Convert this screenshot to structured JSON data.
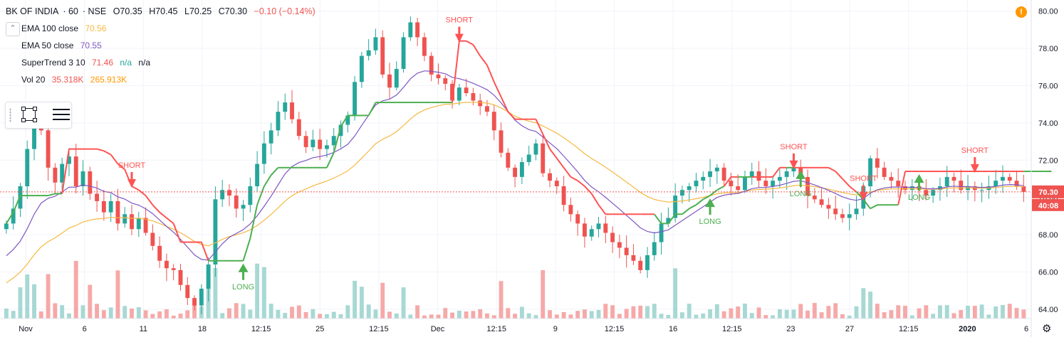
{
  "header": {
    "symbol": "BK OF INDIA",
    "interval": "60",
    "exchange": "NSE",
    "open": "O70.35",
    "high": "H70.45",
    "low": "L70.25",
    "close": "C70.30",
    "change": "−0.10 (−0.14%)"
  },
  "indicators": [
    {
      "label": "EMA 100 close",
      "value": "70.56",
      "color": "#f5b942"
    },
    {
      "label": "EMA 50 close",
      "value": "70.55",
      "color": "#7e57c2"
    },
    {
      "label": "SuperTrend 3 10",
      "value": "71.46",
      "extra1": "n/a",
      "extra2": "n/a",
      "color": "#ef5350",
      "extra_color": "#26a69a"
    },
    {
      "label": "Vol 20",
      "value": "35.318K",
      "extra1": "265.913K",
      "color": "#ef5350",
      "extra_color": "#ff9800"
    }
  ],
  "toolbox": {
    "icons": [
      "drag-handle-icon",
      "rectangle-tool-icon",
      "list-icon"
    ]
  },
  "alert_icon": "!",
  "price_label": "70.30",
  "countdown_label": "40:08",
  "colors": {
    "up": "#26a69a",
    "down": "#ef5350",
    "supertrend_up": "#4caf50",
    "supertrend_down": "#ff5252",
    "ema100": "#f5b942",
    "ema50": "#7e57c2",
    "vol_up": "#a7d8d4",
    "vol_down": "#f5a9a8",
    "price_line": "#ef5350"
  },
  "chart_data": {
    "type": "candlestick",
    "price_axis": {
      "min": 63.5,
      "max": 80.6,
      "ticks": [
        "80.00",
        "78.00",
        "76.00",
        "74.00",
        "72.00",
        "70.00",
        "68.00",
        "66.00",
        "64.00"
      ]
    },
    "x_ticks": [
      "Nov",
      "6",
      "11",
      "18",
      "12:15",
      "25",
      "12:15",
      "Dec",
      "12:15",
      "9",
      "12:15",
      "16",
      "12:15",
      "23",
      "27",
      "12:15",
      "2020",
      "6"
    ],
    "close": [
      68.6,
      69.4,
      70.6,
      72.6,
      74.2,
      73.6,
      71.6,
      70.8,
      71.8,
      72.2,
      70.6,
      71.4,
      70.2,
      69.8,
      69.2,
      69.8,
      68.6,
      69.1,
      68.3,
      68.9,
      68.1,
      67.4,
      66.6,
      66.2,
      66.1,
      65.3,
      64.6,
      64.2,
      65.1,
      66.4,
      69.9,
      70.4,
      70.1,
      69.4,
      69.6,
      70.6,
      71.8,
      72.9,
      73.6,
      74.6,
      75.1,
      74.2,
      73.3,
      72.7,
      73.1,
      72.6,
      72.8,
      73.3,
      73.9,
      74.4,
      76.2,
      77.6,
      77.9,
      78.6,
      76.6,
      75.9,
      76.9,
      78.6,
      79.4,
      78.6,
      77.6,
      76.6,
      76.4,
      76.1,
      75.2,
      75.9,
      75.6,
      75.2,
      74.9,
      74.6,
      73.6,
      72.4,
      71.6,
      71.1,
      71.9,
      72.3,
      72.9,
      71.3,
      70.9,
      70.6,
      69.6,
      69.1,
      68.6,
      67.9,
      68.3,
      68.6,
      68.1,
      67.6,
      67.3,
      66.9,
      66.6,
      66.1,
      66.9,
      67.6,
      68.6,
      68.9,
      70.1,
      70.4,
      70.6,
      70.9,
      71.1,
      71.4,
      71.6,
      70.9,
      70.6,
      70.4,
      71.1,
      71.4,
      70.9,
      70.6,
      70.9,
      71.1,
      71.4,
      71.6,
      71.1,
      70.1,
      69.9,
      69.6,
      69.4,
      69.1,
      68.9,
      69.1,
      69.4,
      70.6,
      72.1,
      71.6,
      71.1,
      70.9,
      70.6,
      70.4,
      70.6,
      70.4,
      70.1,
      70.4,
      70.6,
      71.1,
      70.9,
      70.4,
      70.6,
      70.4,
      70.4,
      70.6,
      70.9,
      71.1,
      70.9,
      70.6,
      70.3
    ],
    "supertrend": [
      68.6,
      69.2,
      70.1,
      70.1,
      70.1,
      70.1,
      70.1,
      70.2,
      70.2,
      72.6,
      72.6,
      72.6,
      72.6,
      72.6,
      72.5,
      72.3,
      71.8,
      71.5,
      70.6,
      70.4,
      70.1,
      69.6,
      69.2,
      68.9,
      68.6,
      67.6,
      67.6,
      67.6,
      67.6,
      66.6,
      66.6,
      66.6,
      66.6,
      66.6,
      66.6,
      67.8,
      69.6,
      70.6,
      71.2,
      71.6,
      71.6,
      71.6,
      71.6,
      71.6,
      71.6,
      71.6,
      71.6,
      72.4,
      73.8,
      74.4,
      74.4,
      74.4,
      74.4,
      75.1,
      75.1,
      75.1,
      75.1,
      75.1,
      75.1,
      75.1,
      75.1,
      75.1,
      75.1,
      75.1,
      75.1,
      78.4,
      78.4,
      78.2,
      77.6,
      77.1,
      76.2,
      75.4,
      74.6,
      74.2,
      74.2,
      74.2,
      74.2,
      73.4,
      72.6,
      72.1,
      71.6,
      71.1,
      70.9,
      70.6,
      70.2,
      69.6,
      69.1,
      69.1,
      69.1,
      69.1,
      69.1,
      69.1,
      69.1,
      69.1,
      68.6,
      68.6,
      69.1,
      69.1,
      69.4,
      69.6,
      69.9,
      70.1,
      70.4,
      70.6,
      71.1,
      71.1,
      71.1,
      71.1,
      71.1,
      71.1,
      71.1,
      71.6,
      71.6,
      71.6,
      71.6,
      71.6,
      71.6,
      71.6,
      71.6,
      71.4,
      71.0,
      70.6,
      70.3,
      69.9,
      69.4,
      69.6,
      69.6,
      69.6,
      69.6,
      71.4,
      71.4,
      71.4,
      71.4,
      71.4,
      71.4,
      71.4,
      71.4,
      71.4,
      71.4,
      71.4,
      71.4,
      71.4,
      71.4,
      71.4,
      71.4,
      71.4,
      71.4,
      71.4,
      71.4,
      71.4,
      71.4
    ],
    "signals": [
      {
        "label": "SHORT",
        "type": "short",
        "bar": 18
      },
      {
        "label": "LONG",
        "type": "long",
        "bar": 34
      },
      {
        "label": "SHORT",
        "type": "short",
        "bar": 65
      },
      {
        "label": "LONG",
        "type": "long",
        "bar": 101
      },
      {
        "label": "SHORT",
        "type": "short",
        "bar": 113
      },
      {
        "label": "LONG",
        "type": "long",
        "bar": 114
      },
      {
        "label": "SHORT",
        "type": "short",
        "bar": 123
      },
      {
        "label": "LONG",
        "type": "long",
        "bar": 131
      },
      {
        "label": "SHORT",
        "type": "short",
        "bar": 139
      }
    ]
  }
}
